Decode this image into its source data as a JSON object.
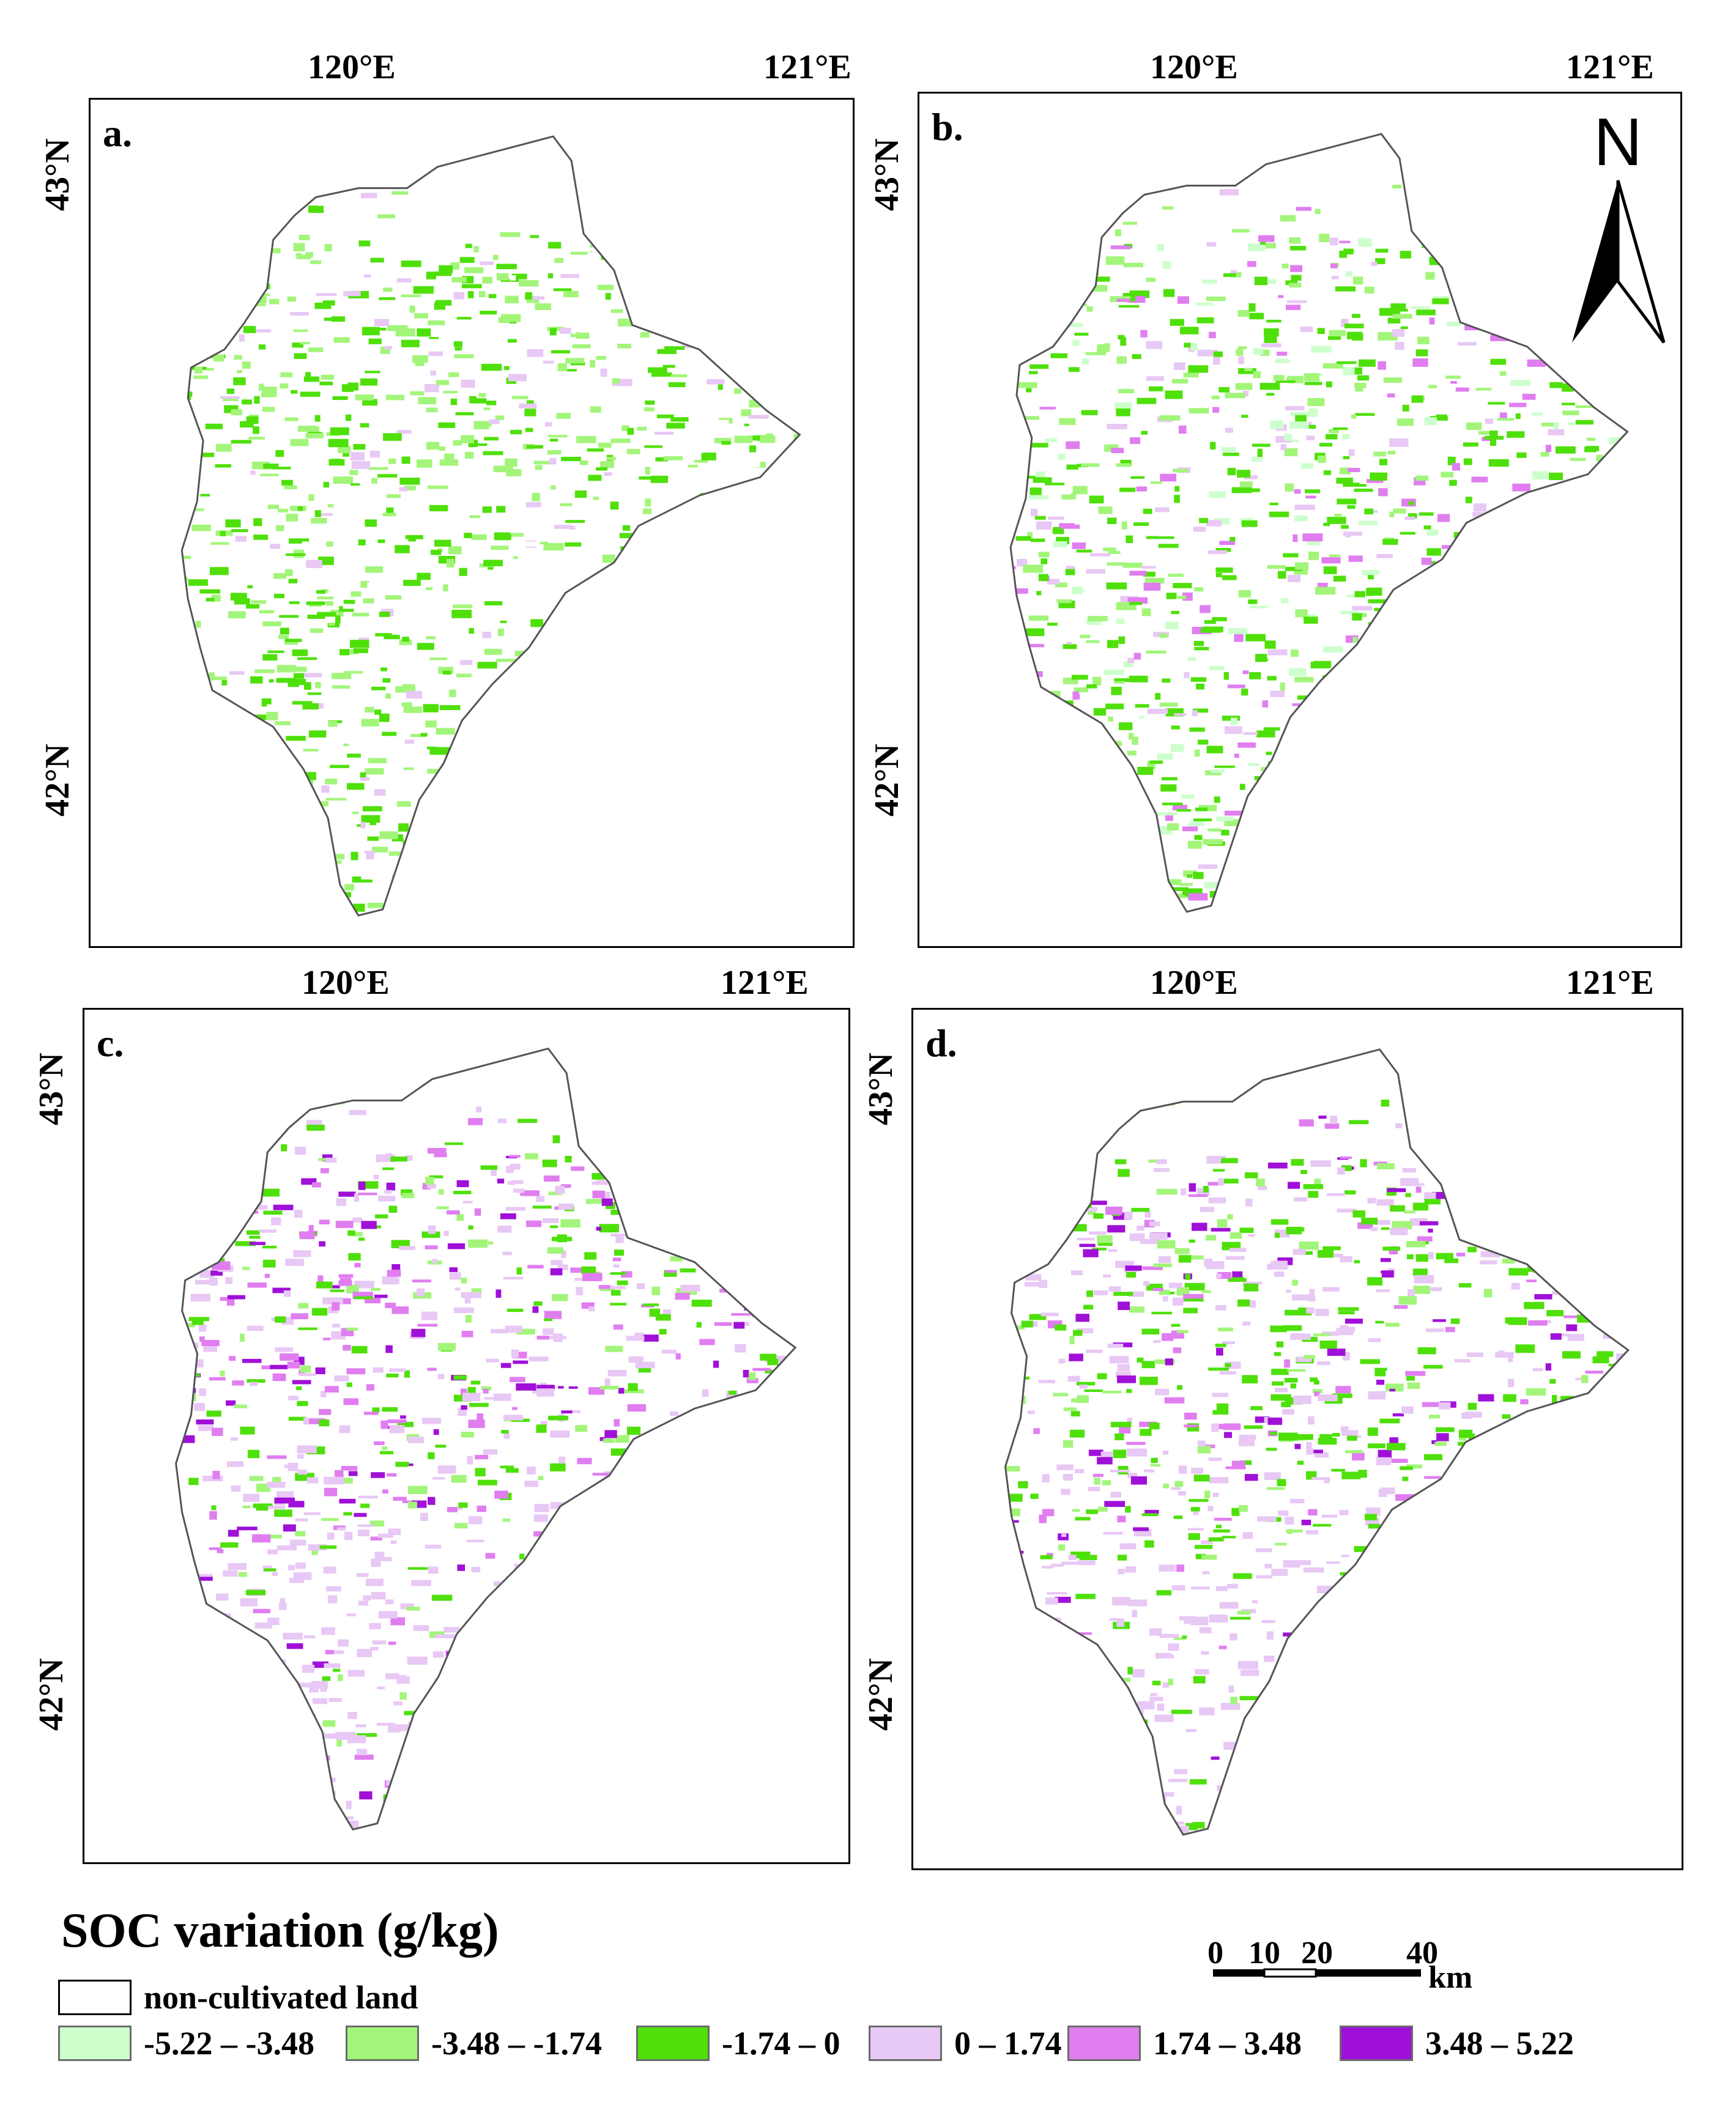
{
  "panels": [
    {
      "id": "a",
      "label": "a.",
      "lon_ticks": [
        "120°E",
        "121°E"
      ],
      "lat_ticks": [
        "43°N",
        "42°N"
      ]
    },
    {
      "id": "b",
      "label": "b.",
      "lon_ticks": [
        "120°E",
        "121°E"
      ],
      "lat_ticks": [
        "43°N",
        "42°N"
      ]
    },
    {
      "id": "c",
      "label": "c.",
      "lon_ticks": [
        "120°E",
        "121°E"
      ],
      "lat_ticks": [
        "43°N",
        "42°N"
      ]
    },
    {
      "id": "d",
      "label": "d.",
      "lon_ticks": [
        "120°E",
        "121°E"
      ],
      "lat_ticks": [
        "43°N",
        "42°N"
      ]
    }
  ],
  "legend": {
    "title": "SOC variation (g/kg)",
    "items": [
      {
        "label": "non-cultivated land",
        "color": "#ffffff"
      },
      {
        "label": "-5.22 – -3.48",
        "color": "#ccffcc"
      },
      {
        "label": "-3.48 – -1.74",
        "color": "#a3f57a"
      },
      {
        "label": "-1.74 – 0",
        "color": "#4fe00a"
      },
      {
        "label": "0 – 1.74",
        "color": "#e8c8f5"
      },
      {
        "label": "1.74 – 3.48",
        "color": "#e07ef0"
      },
      {
        "label": "3.48 – 5.22",
        "color": "#a010d8"
      }
    ]
  },
  "scale_bar": {
    "ticks": [
      "0",
      "10",
      "20",
      "40"
    ],
    "unit": "km"
  },
  "north_arrow": {
    "label": "N"
  },
  "colors": {
    "outline": "#555555",
    "background": "#ffffff"
  }
}
